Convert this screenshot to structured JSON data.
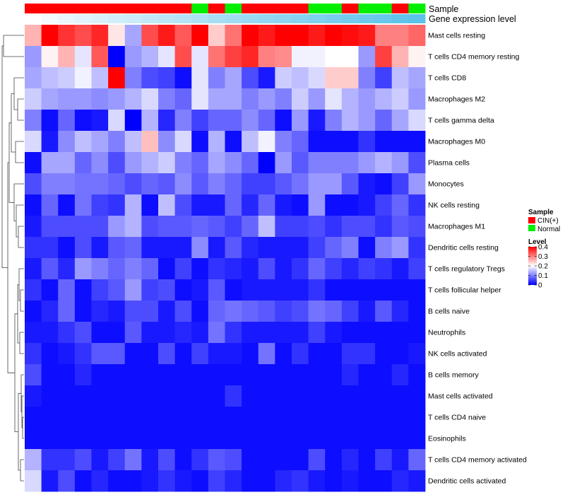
{
  "chart_data": {
    "type": "heatmap",
    "title": "",
    "colormap": {
      "low": "#0000ff",
      "mid": "#ffffff",
      "high": "#ff0000",
      "min": 0,
      "mid_value": 0.2,
      "max": 0.4
    },
    "rows": [
      "Mast cells resting",
      "T cells CD4 memory resting",
      "T cells CD8",
      "Macrophages M2",
      "T cells gamma delta",
      "Macrophages M0",
      "Plasma cells",
      "Monocytes",
      "NK cells resting",
      "Macrophages M1",
      "Dendritic cells resting",
      "T cells regulatory  Tregs",
      "T cells follicular helper",
      "B cells naive",
      "Neutrophils",
      "NK cells activated",
      "B cells memory",
      "Mast cells activated",
      "T cells CD4 naive",
      "Eosinophils",
      "T cells CD4 memory activated",
      "Dendritic cells activated"
    ],
    "sample_groups": [
      "CIN(+)",
      "CIN(+)",
      "CIN(+)",
      "CIN(+)",
      "CIN(+)",
      "CIN(+)",
      "CIN(+)",
      "CIN(+)",
      "CIN(+)",
      "CIN(+)",
      "Normal",
      "CIN(+)",
      "Normal",
      "CIN(+)",
      "CIN(+)",
      "CIN(+)",
      "CIN(+)",
      "Normal",
      "Normal",
      "CIN(+)",
      "Normal",
      "Normal",
      "CIN(+)",
      "Normal"
    ],
    "values": [
      [
        0.26,
        0.4,
        0.36,
        0.34,
        0.37,
        0.22,
        0.13,
        0.34,
        0.38,
        0.33,
        0.4,
        0.24,
        0.31,
        0.4,
        0.38,
        0.4,
        0.4,
        0.38,
        0.4,
        0.39,
        0.38,
        0.3,
        0.3,
        0.32
      ],
      [
        0.12,
        0.21,
        0.26,
        0.18,
        0.33,
        0.0,
        0.12,
        0.14,
        0.18,
        0.34,
        0.18,
        0.31,
        0.35,
        0.37,
        0.3,
        0.29,
        0.19,
        0.19,
        0.2,
        0.2,
        0.12,
        0.35,
        0.26,
        0.21
      ],
      [
        0.13,
        0.15,
        0.16,
        0.19,
        0.15,
        0.4,
        0.1,
        0.06,
        0.05,
        0.01,
        0.18,
        0.1,
        0.13,
        0.06,
        0.02,
        0.16,
        0.15,
        0.17,
        0.24,
        0.24,
        0.1,
        0.05,
        0.15,
        0.13
      ],
      [
        0.16,
        0.13,
        0.12,
        0.12,
        0.11,
        0.12,
        0.14,
        0.17,
        0.1,
        0.08,
        0.18,
        0.13,
        0.13,
        0.1,
        0.12,
        0.1,
        0.16,
        0.12,
        0.18,
        0.14,
        0.12,
        0.14,
        0.16,
        0.12
      ],
      [
        0.1,
        0.01,
        0.08,
        0.01,
        0.02,
        0.17,
        0.0,
        0.14,
        0.03,
        0.1,
        0.05,
        0.08,
        0.08,
        0.11,
        0.08,
        0.01,
        0.12,
        0.02,
        0.1,
        0.14,
        0.12,
        0.08,
        0.13,
        0.17
      ],
      [
        0.17,
        0.02,
        0.11,
        0.15,
        0.13,
        0.1,
        0.15,
        0.25,
        0.11,
        0.17,
        0.01,
        0.14,
        0.01,
        0.15,
        0.19,
        0.1,
        0.08,
        0.01,
        0.01,
        0.01,
        0.04,
        0.01,
        0.01,
        0.01
      ],
      [
        0.01,
        0.13,
        0.13,
        0.08,
        0.11,
        0.06,
        0.12,
        0.14,
        0.16,
        0.1,
        0.08,
        0.13,
        0.11,
        0.08,
        0.0,
        0.12,
        0.07,
        0.1,
        0.1,
        0.1,
        0.12,
        0.14,
        0.12,
        0.06
      ],
      [
        0.06,
        0.1,
        0.1,
        0.09,
        0.09,
        0.08,
        0.06,
        0.08,
        0.07,
        0.11,
        0.07,
        0.1,
        0.08,
        0.05,
        0.05,
        0.07,
        0.09,
        0.12,
        0.12,
        0.07,
        0.02,
        0.01,
        0.05,
        0.12
      ],
      [
        0.01,
        0.08,
        0.01,
        0.09,
        0.05,
        0.04,
        0.14,
        0.01,
        0.15,
        0.06,
        0.02,
        0.02,
        0.08,
        0.03,
        0.08,
        0.02,
        0.01,
        0.12,
        0.01,
        0.01,
        0.02,
        0.05,
        0.08,
        0.04
      ],
      [
        0.02,
        0.06,
        0.06,
        0.06,
        0.06,
        0.12,
        0.14,
        0.06,
        0.07,
        0.07,
        0.08,
        0.07,
        0.05,
        0.08,
        0.15,
        0.05,
        0.05,
        0.06,
        0.04,
        0.06,
        0.06,
        0.04,
        0.07,
        0.06
      ],
      [
        0.04,
        0.04,
        0.01,
        0.06,
        0.02,
        0.07,
        0.08,
        0.02,
        0.02,
        0.02,
        0.11,
        0.02,
        0.07,
        0.03,
        0.02,
        0.02,
        0.02,
        0.05,
        0.08,
        0.1,
        0.01,
        0.1,
        0.12,
        0.04
      ],
      [
        0.02,
        0.07,
        0.03,
        0.12,
        0.1,
        0.08,
        0.1,
        0.08,
        0.01,
        0.05,
        0.01,
        0.04,
        0.03,
        0.02,
        0.06,
        0.02,
        0.04,
        0.08,
        0.05,
        0.03,
        0.05,
        0.04,
        0.02,
        0.05
      ],
      [
        0.04,
        0.01,
        0.08,
        0.01,
        0.05,
        0.07,
        0.12,
        0.05,
        0.06,
        0.01,
        0.02,
        0.07,
        0.01,
        0.02,
        0.02,
        0.02,
        0.02,
        0.04,
        0.01,
        0.01,
        0.01,
        0.01,
        0.01,
        0.01
      ],
      [
        0.01,
        0.03,
        0.08,
        0.01,
        0.03,
        0.02,
        0.06,
        0.06,
        0.02,
        0.06,
        0.01,
        0.08,
        0.09,
        0.08,
        0.07,
        0.05,
        0.06,
        0.09,
        0.08,
        0.05,
        0.02,
        0.07,
        0.03,
        0.01
      ],
      [
        0.02,
        0.02,
        0.04,
        0.06,
        0.01,
        0.01,
        0.07,
        0.02,
        0.02,
        0.03,
        0.02,
        0.09,
        0.04,
        0.02,
        0.02,
        0.02,
        0.02,
        0.05,
        0.02,
        0.01,
        0.01,
        0.01,
        0.01,
        0.01
      ],
      [
        0.04,
        0.01,
        0.02,
        0.04,
        0.07,
        0.07,
        0.01,
        0.01,
        0.06,
        0.01,
        0.05,
        0.02,
        0.02,
        0.01,
        0.09,
        0.01,
        0.04,
        0.01,
        0.01,
        0.04,
        0.04,
        0.01,
        0.01,
        0.02
      ],
      [
        0.06,
        0.01,
        0.01,
        0.03,
        0.01,
        0.01,
        0.01,
        0.01,
        0.01,
        0.01,
        0.01,
        0.01,
        0.01,
        0.01,
        0.01,
        0.01,
        0.01,
        0.01,
        0.01,
        0.03,
        0.01,
        0.01,
        0.03,
        0.01
      ],
      [
        0.02,
        0.01,
        0.01,
        0.01,
        0.01,
        0.01,
        0.01,
        0.01,
        0.01,
        0.01,
        0.01,
        0.01,
        0.04,
        0.01,
        0.01,
        0.01,
        0.01,
        0.01,
        0.01,
        0.01,
        0.01,
        0.01,
        0.01,
        0.01
      ],
      [
        0.01,
        0.01,
        0.01,
        0.01,
        0.01,
        0.01,
        0.01,
        0.01,
        0.01,
        0.01,
        0.01,
        0.01,
        0.01,
        0.01,
        0.01,
        0.01,
        0.01,
        0.01,
        0.01,
        0.01,
        0.01,
        0.01,
        0.01,
        0.01
      ],
      [
        0.01,
        0.01,
        0.01,
        0.01,
        0.01,
        0.01,
        0.01,
        0.01,
        0.01,
        0.01,
        0.01,
        0.01,
        0.01,
        0.01,
        0.01,
        0.01,
        0.01,
        0.01,
        0.01,
        0.01,
        0.01,
        0.01,
        0.01,
        0.01
      ],
      [
        0.14,
        0.04,
        0.04,
        0.06,
        0.02,
        0.05,
        0.09,
        0.02,
        0.06,
        0.01,
        0.04,
        0.07,
        0.06,
        0.01,
        0.01,
        0.01,
        0.01,
        0.06,
        0.01,
        0.03,
        0.01,
        0.05,
        0.02,
        0.08
      ],
      [
        0.17,
        0.02,
        0.06,
        0.01,
        0.03,
        0.01,
        0.01,
        0.02,
        0.04,
        0.02,
        0.01,
        0.05,
        0.03,
        0.01,
        0.01,
        0.03,
        0.04,
        0.02,
        0.01,
        0.02,
        0.01,
        0.01,
        0.03,
        0.02
      ]
    ],
    "annotations": [
      {
        "name": "Sample",
        "type": "categorical"
      },
      {
        "name": "Gene expression level",
        "type": "gradient",
        "from": "#ffffff",
        "to": "#5bc2ea"
      }
    ],
    "legends": [
      {
        "title": "Sample",
        "entries": [
          {
            "label": "CIN(+)",
            "color": "#ff0000"
          },
          {
            "label": "Normal",
            "color": "#00ee00"
          }
        ]
      },
      {
        "title": "Level",
        "ticks": [
          "0.4",
          "0.3",
          "0.2",
          "0.1",
          "0"
        ]
      }
    ],
    "row_dendrogram": true,
    "legend_position": "right"
  }
}
